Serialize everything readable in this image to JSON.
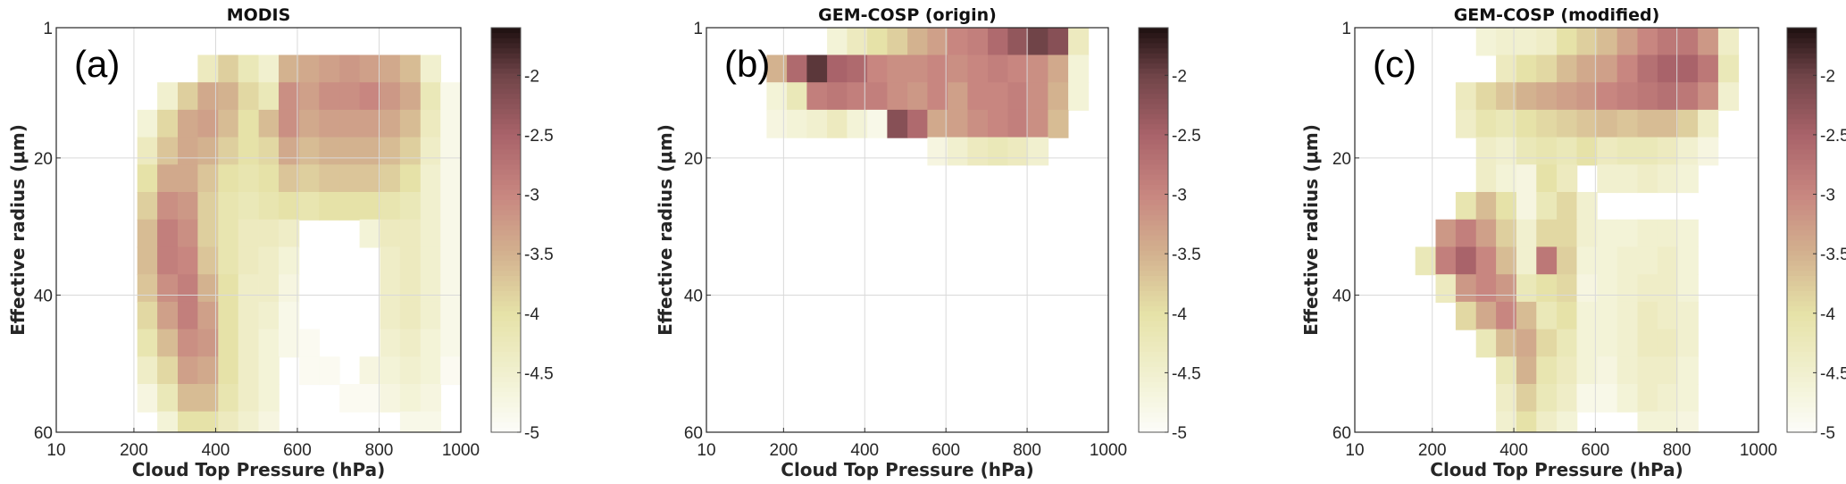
{
  "chart_data": {
    "type": "heatmap",
    "shared": {
      "xlabel": "Cloud Top Pressure (hPa)",
      "ylabel": "Effective radius (μm)",
      "xlim": [
        10,
        1000
      ],
      "ylim": [
        1,
        60
      ],
      "xticks": [
        10,
        200,
        400,
        600,
        800,
        1000
      ],
      "yticks": [
        1,
        20,
        40,
        60
      ],
      "x_bin_centers": [
        35,
        84,
        134,
        183,
        233,
        282,
        332,
        381,
        431,
        480,
        530,
        579,
        629,
        678,
        728,
        777,
        827,
        876,
        926,
        975
      ],
      "y_bin_centers": [
        3,
        7,
        11,
        15,
        19,
        23,
        27,
        31,
        35,
        39,
        43,
        47,
        51,
        55,
        59
      ],
      "grid": true,
      "colorbar": {
        "range": [
          -5,
          -1.6
        ],
        "ticks": [
          -2,
          -2.5,
          -3,
          -3.5,
          -4,
          -4.5,
          -5
        ],
        "tick_labels": [
          "-2",
          "-2.5",
          "-3",
          "-3.5",
          "-4",
          "-4.5",
          "-5"
        ],
        "colormap": [
          {
            "v": -5,
            "c": "#fdfdf9"
          },
          {
            "v": -4.5,
            "c": "#f1f0cf"
          },
          {
            "v": -4,
            "c": "#e6e2a8"
          },
          {
            "v": -3.5,
            "c": "#d3b28f"
          },
          {
            "v": -3,
            "c": "#c88680"
          },
          {
            "v": -2.5,
            "c": "#a9636a"
          },
          {
            "v": -2,
            "c": "#704448"
          },
          {
            "v": -1.6,
            "c": "#1e1010"
          }
        ]
      }
    },
    "panels": [
      {
        "title": "MODIS",
        "label": "(a)",
        "values": [
          [
            null,
            null,
            null,
            null,
            null,
            null,
            null,
            null,
            null,
            null,
            null,
            null,
            null,
            null,
            null,
            null,
            null,
            null,
            null,
            null
          ],
          [
            null,
            null,
            null,
            null,
            null,
            null,
            null,
            -4.3,
            -3.8,
            -4.2,
            -4.5,
            -3.5,
            -3.4,
            -3.3,
            -3.2,
            -3.3,
            -3.4,
            -3.6,
            -4.5,
            null
          ],
          [
            null,
            null,
            null,
            null,
            null,
            -4.5,
            -3.8,
            -3.4,
            -3.5,
            -3.9,
            -4.2,
            -3.1,
            -3.3,
            -3.1,
            -3.1,
            -3.0,
            -3.2,
            -3.4,
            -4.2,
            -4.8
          ],
          [
            null,
            null,
            null,
            null,
            -4.6,
            -3.9,
            -3.4,
            -3.3,
            -3.6,
            -4.0,
            -3.6,
            -3.1,
            -3.4,
            -3.3,
            -3.3,
            -3.3,
            -3.4,
            -3.6,
            -4.3,
            -4.8
          ],
          [
            null,
            null,
            null,
            null,
            -4.3,
            -3.7,
            -3.4,
            -3.5,
            -3.8,
            -4.0,
            -3.9,
            -3.4,
            -3.6,
            -3.5,
            -3.5,
            -3.5,
            -3.6,
            -3.8,
            -4.4,
            -4.8
          ],
          [
            null,
            null,
            null,
            null,
            -4.0,
            -3.4,
            -3.4,
            -3.7,
            -4.0,
            -4.1,
            -4.0,
            -3.7,
            -3.8,
            -3.7,
            -3.7,
            -3.7,
            -3.8,
            -4.0,
            -4.5,
            -4.8
          ],
          [
            null,
            null,
            null,
            null,
            -3.8,
            -3.1,
            -3.2,
            -3.8,
            -4.1,
            -4.2,
            -4.1,
            -4.0,
            -4.1,
            -4.0,
            -4.0,
            -4.0,
            -4.1,
            -4.2,
            -4.5,
            -4.8
          ],
          [
            null,
            null,
            null,
            null,
            -3.6,
            -2.9,
            -3.1,
            -3.8,
            -4.1,
            -4.3,
            -4.3,
            -4.4,
            null,
            null,
            null,
            -4.6,
            -4.3,
            -4.3,
            -4.5,
            -4.8
          ],
          [
            null,
            null,
            null,
            null,
            -3.6,
            -2.9,
            -3.0,
            -3.7,
            -4.1,
            -4.3,
            -4.4,
            -4.6,
            null,
            null,
            null,
            null,
            -4.4,
            -4.3,
            -4.5,
            -4.8
          ],
          [
            null,
            null,
            null,
            null,
            -3.7,
            -3.1,
            -2.9,
            -3.5,
            -4.0,
            -4.4,
            -4.4,
            -4.7,
            null,
            null,
            null,
            null,
            -4.4,
            -4.3,
            -4.5,
            -4.8
          ],
          [
            null,
            null,
            null,
            null,
            -3.9,
            -3.3,
            -2.9,
            -3.3,
            -4.0,
            -4.4,
            -4.5,
            -4.8,
            null,
            null,
            null,
            null,
            -4.4,
            -4.3,
            -4.5,
            -4.8
          ],
          [
            null,
            null,
            null,
            null,
            -4.1,
            -3.6,
            -3.1,
            -3.2,
            -4.0,
            -4.4,
            -4.6,
            -4.8,
            -4.9,
            null,
            null,
            null,
            -4.5,
            -4.4,
            -4.6,
            -4.8
          ],
          [
            null,
            null,
            null,
            null,
            -4.4,
            -3.9,
            -3.3,
            -3.4,
            -4.0,
            -4.4,
            -4.6,
            null,
            -4.9,
            -4.9,
            null,
            -4.7,
            -4.6,
            -4.5,
            -4.6,
            -4.9
          ],
          [
            null,
            null,
            null,
            null,
            -4.7,
            -4.2,
            -3.6,
            -3.6,
            -4.1,
            -4.4,
            -4.6,
            null,
            null,
            null,
            -4.9,
            -4.9,
            -4.7,
            -4.6,
            -4.7,
            null
          ],
          [
            null,
            null,
            null,
            null,
            null,
            -4.6,
            -4.0,
            -4.0,
            -4.3,
            -4.5,
            -4.7,
            null,
            null,
            null,
            null,
            null,
            null,
            -4.8,
            -4.8,
            null
          ]
        ]
      },
      {
        "title": "GEM-COSP (origin)",
        "label": "(b)",
        "values": [
          [
            null,
            null,
            null,
            null,
            null,
            null,
            -4.6,
            -4.3,
            -4.0,
            -3.8,
            -3.5,
            -3.3,
            -3.0,
            -2.9,
            -2.6,
            -2.3,
            -2.0,
            -2.2,
            -4.3,
            null
          ],
          [
            null,
            null,
            null,
            -3.5,
            -2.6,
            -1.9,
            -2.5,
            -2.6,
            -3.0,
            -3.1,
            -3.1,
            -3.0,
            -3.1,
            -3.0,
            -2.9,
            -3.0,
            -3.1,
            -3.4,
            -4.6,
            null
          ],
          [
            null,
            null,
            null,
            -4.6,
            -4.2,
            -2.9,
            -2.8,
            -2.9,
            -2.9,
            -3.1,
            -3.2,
            -3.0,
            -3.3,
            -3.0,
            -3.0,
            -2.9,
            -3.1,
            -3.5,
            -4.6,
            null
          ],
          [
            null,
            null,
            null,
            -4.7,
            -4.6,
            -4.5,
            -4.3,
            -4.6,
            -4.8,
            -2.2,
            -2.6,
            -3.4,
            -3.3,
            -3.1,
            -3.0,
            -2.9,
            -3.1,
            -3.6,
            null,
            null
          ],
          [
            null,
            null,
            null,
            null,
            null,
            null,
            null,
            null,
            null,
            null,
            null,
            -4.7,
            -4.5,
            -4.3,
            -4.2,
            -4.3,
            -4.5,
            null,
            null,
            null
          ],
          [
            null,
            null,
            null,
            null,
            null,
            null,
            null,
            null,
            null,
            null,
            null,
            null,
            null,
            null,
            null,
            null,
            null,
            null,
            null,
            null
          ],
          [
            null,
            null,
            null,
            null,
            null,
            null,
            null,
            null,
            null,
            null,
            null,
            null,
            null,
            null,
            null,
            null,
            null,
            null,
            null,
            null
          ],
          [
            null,
            null,
            null,
            null,
            null,
            null,
            null,
            null,
            null,
            null,
            null,
            null,
            null,
            null,
            null,
            null,
            null,
            null,
            null,
            null
          ],
          [
            null,
            null,
            null,
            null,
            null,
            null,
            null,
            null,
            null,
            null,
            null,
            null,
            null,
            null,
            null,
            null,
            null,
            null,
            null,
            null
          ],
          [
            null,
            null,
            null,
            null,
            null,
            null,
            null,
            null,
            null,
            null,
            null,
            null,
            null,
            null,
            null,
            null,
            null,
            null,
            null,
            null
          ],
          [
            null,
            null,
            null,
            null,
            null,
            null,
            null,
            null,
            null,
            null,
            null,
            null,
            null,
            null,
            null,
            null,
            null,
            null,
            null,
            null
          ],
          [
            null,
            null,
            null,
            null,
            null,
            null,
            null,
            null,
            null,
            null,
            null,
            null,
            null,
            null,
            null,
            null,
            null,
            null,
            null,
            null
          ],
          [
            null,
            null,
            null,
            null,
            null,
            null,
            null,
            null,
            null,
            null,
            null,
            null,
            null,
            null,
            null,
            null,
            null,
            null,
            null,
            null
          ],
          [
            null,
            null,
            null,
            null,
            null,
            null,
            null,
            null,
            null,
            null,
            null,
            null,
            null,
            null,
            null,
            null,
            null,
            null,
            null,
            null
          ],
          [
            null,
            null,
            null,
            null,
            null,
            null,
            null,
            null,
            null,
            null,
            null,
            null,
            null,
            null,
            null,
            null,
            null,
            null,
            null,
            null
          ]
        ]
      },
      {
        "title": "GEM-COSP (modified)",
        "label": "(c)",
        "values": [
          [
            null,
            null,
            null,
            null,
            null,
            null,
            -4.6,
            -4.5,
            -4.5,
            -4.4,
            -4.0,
            -3.8,
            -3.6,
            -3.3,
            -3.0,
            -2.8,
            -2.8,
            -3.2,
            -4.4,
            null
          ],
          [
            null,
            null,
            null,
            null,
            null,
            null,
            null,
            -4.3,
            -4.0,
            -3.9,
            -3.6,
            -3.4,
            -3.3,
            -3.0,
            -2.7,
            -2.5,
            -2.5,
            -2.8,
            -4.2,
            null
          ],
          [
            null,
            null,
            null,
            null,
            null,
            -4.3,
            -3.9,
            -3.7,
            -3.5,
            -3.4,
            -3.3,
            -3.2,
            -3.0,
            -2.9,
            -2.8,
            -2.7,
            -2.8,
            -3.1,
            -4.5,
            null
          ],
          [
            null,
            null,
            null,
            null,
            null,
            -4.4,
            -4.1,
            -4.2,
            -4.0,
            -3.9,
            -3.8,
            -3.7,
            -3.6,
            -3.7,
            -3.6,
            -3.6,
            -3.8,
            -4.4,
            null,
            null
          ],
          [
            null,
            null,
            null,
            null,
            null,
            null,
            -4.4,
            -4.5,
            -4.2,
            -4.1,
            -4.2,
            -4.0,
            -4.3,
            -4.2,
            -4.2,
            -4.3,
            -4.5,
            -4.7,
            null,
            null
          ],
          [
            null,
            null,
            null,
            null,
            null,
            null,
            -4.4,
            -4.6,
            -4.7,
            -4.0,
            -4.3,
            null,
            -4.5,
            -4.5,
            -4.4,
            -4.5,
            -4.6,
            null,
            null,
            null
          ],
          [
            null,
            null,
            null,
            null,
            null,
            -4.1,
            -3.6,
            -4.0,
            -4.7,
            -4.2,
            -3.9,
            -4.5,
            null,
            null,
            null,
            null,
            null,
            null,
            null,
            null
          ],
          [
            null,
            null,
            null,
            null,
            -3.2,
            -2.9,
            -3.3,
            -3.8,
            -4.5,
            -3.9,
            -3.9,
            -4.5,
            -4.6,
            -4.6,
            -4.5,
            -4.5,
            -4.6,
            null,
            null,
            null
          ],
          [
            null,
            null,
            null,
            -4.2,
            -2.9,
            -2.5,
            -3.0,
            -3.6,
            -4.5,
            -2.8,
            -3.8,
            -4.6,
            -4.6,
            -4.5,
            -4.5,
            -4.4,
            -4.6,
            null,
            null,
            null
          ],
          [
            null,
            null,
            null,
            null,
            -4.3,
            -3.2,
            -3.0,
            -3.2,
            -4.2,
            -4.0,
            -3.9,
            -4.7,
            -4.6,
            -4.5,
            -4.4,
            -4.4,
            -4.6,
            null,
            null,
            null
          ],
          [
            null,
            null,
            null,
            null,
            null,
            -3.9,
            -3.4,
            -3.0,
            -3.6,
            -4.2,
            -4.0,
            -4.6,
            -4.6,
            -4.5,
            -4.3,
            -4.4,
            -4.5,
            null,
            null,
            null
          ],
          [
            null,
            null,
            null,
            null,
            null,
            null,
            -4.2,
            -3.6,
            -3.4,
            -3.9,
            -4.2,
            -4.6,
            -4.6,
            -4.5,
            -4.3,
            -4.3,
            -4.5,
            null,
            null,
            null
          ],
          [
            null,
            null,
            null,
            null,
            null,
            null,
            null,
            -4.2,
            -3.5,
            -4.1,
            -4.3,
            -4.6,
            -4.7,
            -4.5,
            -4.4,
            -4.4,
            -4.6,
            null,
            null,
            null
          ],
          [
            null,
            null,
            null,
            null,
            null,
            null,
            null,
            -4.4,
            -3.8,
            -4.2,
            -4.4,
            -4.8,
            -4.8,
            -4.6,
            -4.4,
            -4.5,
            -4.6,
            null,
            null,
            null
          ],
          [
            null,
            null,
            null,
            null,
            null,
            null,
            null,
            -4.5,
            -4.0,
            -4.4,
            -4.6,
            null,
            null,
            null,
            -4.6,
            -4.6,
            -4.7,
            null,
            null,
            null
          ]
        ]
      }
    ]
  }
}
